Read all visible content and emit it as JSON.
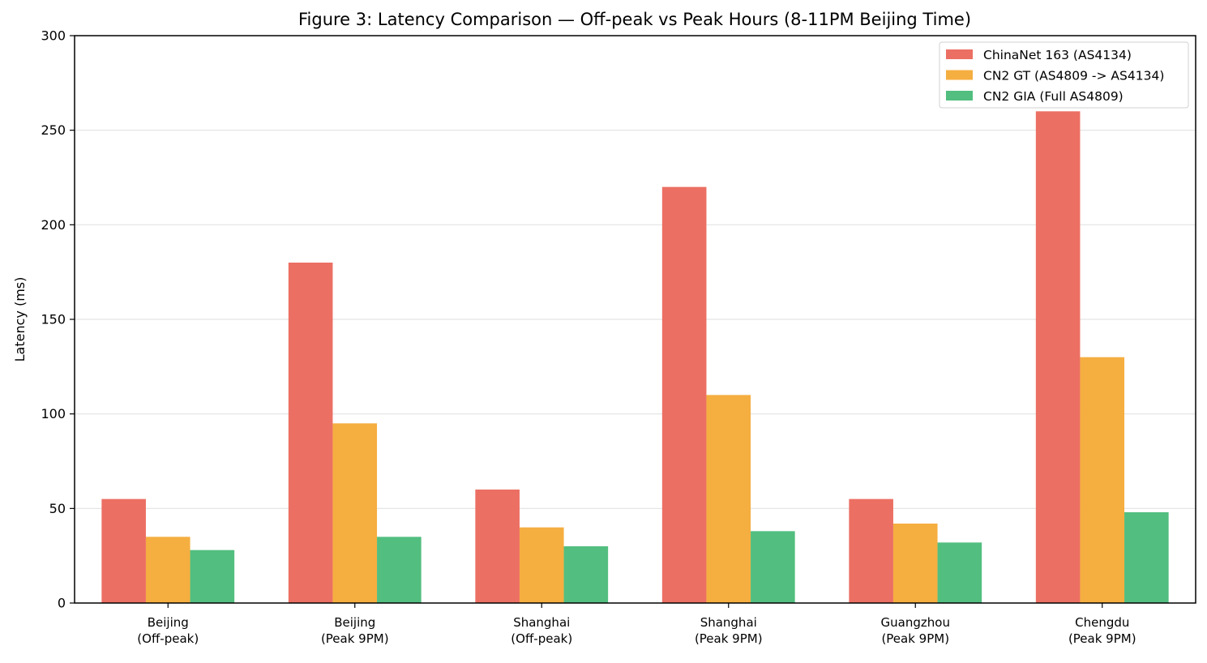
{
  "chart_data": {
    "type": "bar",
    "title": "Figure 3: Latency Comparison — Off-peak vs Peak Hours (8-11PM Beijing Time)",
    "xlabel": "",
    "ylabel": "Latency (ms)",
    "ylim": [
      0,
      300
    ],
    "yticks": [
      "0",
      "50",
      "100",
      "150",
      "200",
      "250",
      "300"
    ],
    "grid": "horizontal",
    "legend_position": "top-right",
    "categories": [
      [
        "Beijing",
        "(Off-peak)"
      ],
      [
        "Beijing",
        "(Peak 9PM)"
      ],
      [
        "Shanghai",
        "(Off-peak)"
      ],
      [
        "Shanghai",
        "(Peak 9PM)"
      ],
      [
        "Guangzhou",
        "(Peak 9PM)"
      ],
      [
        "Chengdu",
        "(Peak 9PM)"
      ]
    ],
    "series": [
      {
        "name": "ChinaNet 163 (AS4134)",
        "color": "#ec6f63",
        "values": [
          55,
          180,
          60,
          220,
          55,
          260
        ]
      },
      {
        "name": "CN2 GT (AS4809 -> AS4134)",
        "color": "#f5ae40",
        "values": [
          35,
          95,
          40,
          110,
          42,
          130
        ]
      },
      {
        "name": "CN2 GIA (Full AS4809)",
        "color": "#52be7f",
        "values": [
          28,
          35,
          30,
          38,
          32,
          48
        ]
      }
    ]
  }
}
